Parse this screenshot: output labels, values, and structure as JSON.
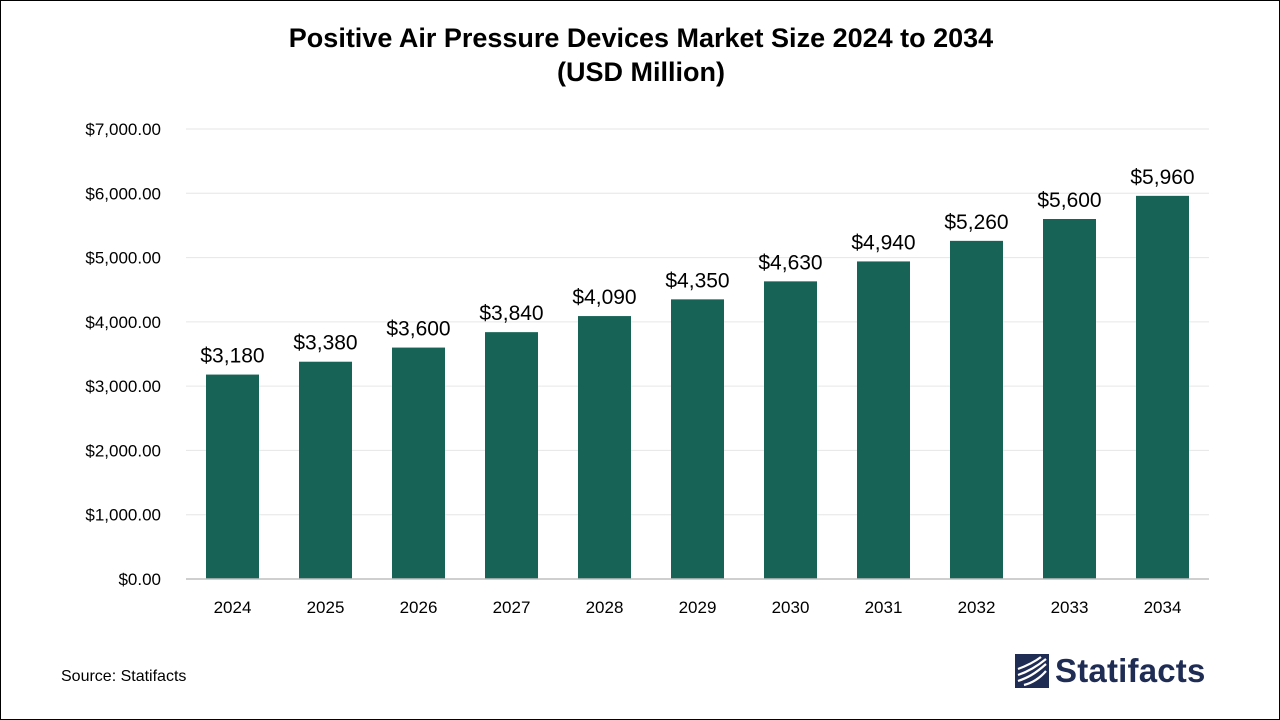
{
  "chart_data": {
    "type": "bar",
    "title": "Positive Air Pressure Devices Market Size 2024 to 2034",
    "subtitle": "(USD Million)",
    "categories": [
      "2024",
      "2025",
      "2026",
      "2027",
      "2028",
      "2029",
      "2030",
      "2031",
      "2032",
      "2033",
      "2034"
    ],
    "values": [
      3180,
      3380,
      3600,
      3840,
      4090,
      4350,
      4630,
      4940,
      5260,
      5600,
      5960
    ],
    "data_labels": [
      "$3,180",
      "$3,380",
      "$3,600",
      "$3,840",
      "$4,090",
      "$4,350",
      "$4,630",
      "$4,940",
      "$5,260",
      "$5,600",
      "$5,960"
    ],
    "y_ticks": [
      0,
      1000,
      2000,
      3000,
      4000,
      5000,
      6000,
      7000
    ],
    "y_tick_labels": [
      "$0.00",
      "$1,000.00",
      "$2,000.00",
      "$3,000.00",
      "$4,000.00",
      "$5,000.00",
      "$6,000.00",
      "$7,000.00"
    ],
    "xlabel": "",
    "ylabel": "",
    "ylim": [
      0,
      7000
    ],
    "grid": true,
    "legend": "none",
    "bar_color": "#176456",
    "grid_color": "#e6e6e6",
    "axis_color": "#bfbfbf"
  },
  "footer": {
    "source": "Source: Statifacts",
    "brand": "Statifacts",
    "brand_color": "#1f2c54",
    "brand_icon": "statifacts-logo-icon"
  }
}
